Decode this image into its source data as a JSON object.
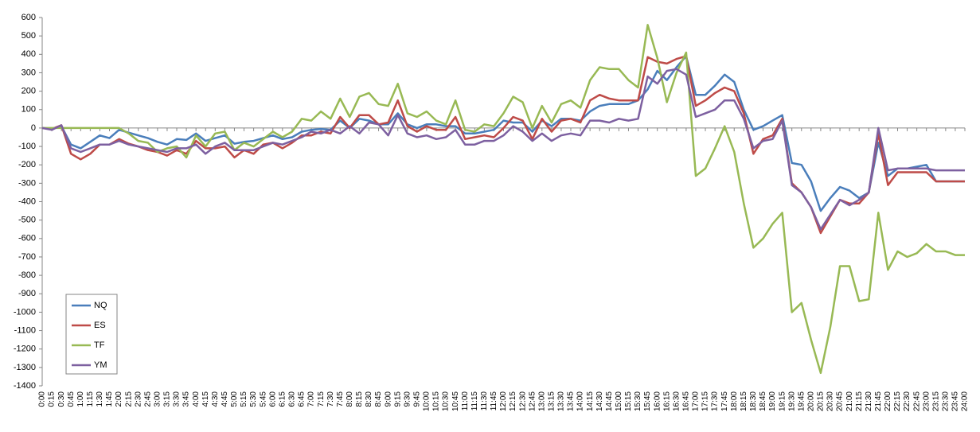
{
  "chart_data": {
    "type": "line",
    "categories": [
      "0:00",
      "0:15",
      "0:30",
      "0:45",
      "1:00",
      "1:15",
      "1:30",
      "1:45",
      "2:00",
      "2:15",
      "2:30",
      "2:45",
      "3:00",
      "3:15",
      "3:30",
      "3:45",
      "4:00",
      "4:15",
      "4:30",
      "4:45",
      "5:00",
      "5:15",
      "5:30",
      "5:45",
      "6:00",
      "6:15",
      "6:30",
      "6:45",
      "7:00",
      "7:15",
      "7:30",
      "7:45",
      "8:00",
      "8:15",
      "8:30",
      "8:45",
      "9:00",
      "9:15",
      "9:30",
      "9:45",
      "10:00",
      "10:15",
      "10:30",
      "10:45",
      "11:00",
      "11:15",
      "11:30",
      "11:45",
      "12:00",
      "12:15",
      "12:30",
      "12:45",
      "13:00",
      "13:15",
      "13:30",
      "13:45",
      "14:00",
      "14:15",
      "14:30",
      "14:45",
      "15:00",
      "15:15",
      "15:30",
      "15:45",
      "16:00",
      "16:15",
      "16:30",
      "16:45",
      "17:00",
      "17:15",
      "17:30",
      "17:45",
      "18:00",
      "18:15",
      "18:30",
      "18:45",
      "19:00",
      "19:15",
      "19:30",
      "19:45",
      "20:00",
      "20:15",
      "20:30",
      "20:45",
      "21:00",
      "21:15",
      "21:30",
      "21:45",
      "22:00",
      "22:15",
      "22:30",
      "22:45",
      "23:00",
      "23:15",
      "23:30",
      "23:45",
      "24:00"
    ],
    "series": [
      {
        "name": "NQ",
        "color": "#4a7ebb",
        "values": [
          0,
          -5,
          10,
          -90,
          -110,
          -75,
          -40,
          -55,
          -10,
          -25,
          -40,
          -55,
          -75,
          -90,
          -60,
          -65,
          -30,
          -70,
          -55,
          -40,
          -85,
          -75,
          -70,
          -55,
          -40,
          -60,
          -50,
          -20,
          -10,
          -5,
          -10,
          40,
          0,
          50,
          40,
          20,
          20,
          80,
          20,
          0,
          20,
          20,
          10,
          10,
          -30,
          -30,
          -20,
          -10,
          40,
          30,
          30,
          -20,
          40,
          10,
          50,
          50,
          40,
          90,
          120,
          130,
          130,
          130,
          150,
          210,
          310,
          260,
          330,
          390,
          180,
          180,
          230,
          290,
          250,
          100,
          -10,
          10,
          40,
          70,
          -190,
          -200,
          -290,
          -450,
          -380,
          -320,
          -340,
          -380,
          -350,
          -80,
          -260,
          -220,
          -220,
          -210,
          -200,
          -290,
          -290,
          -290,
          -290
        ]
      },
      {
        "name": "ES",
        "color": "#be4b48",
        "values": [
          0,
          -5,
          15,
          -140,
          -170,
          -140,
          -90,
          -90,
          -60,
          -85,
          -100,
          -120,
          -130,
          -150,
          -120,
          -140,
          -70,
          -110,
          -110,
          -100,
          -160,
          -120,
          -140,
          -90,
          -80,
          -110,
          -80,
          -40,
          -40,
          -20,
          -30,
          60,
          0,
          70,
          70,
          20,
          30,
          150,
          10,
          -20,
          10,
          -10,
          -10,
          60,
          -60,
          -50,
          -40,
          -50,
          0,
          60,
          40,
          -60,
          50,
          -20,
          40,
          50,
          30,
          150,
          180,
          160,
          150,
          150,
          150,
          385,
          360,
          350,
          375,
          390,
          120,
          150,
          190,
          220,
          200,
          80,
          -140,
          -60,
          -40,
          50,
          -300,
          -350,
          -430,
          -570,
          -480,
          -390,
          -410,
          -410,
          -350,
          -30,
          -310,
          -240,
          -240,
          -240,
          -240,
          -290,
          -290,
          -290,
          -290
        ]
      },
      {
        "name": "TF",
        "color": "#98b954",
        "values": [
          0,
          0,
          0,
          0,
          0,
          0,
          0,
          0,
          0,
          -30,
          -70,
          -80,
          -130,
          -110,
          -100,
          -160,
          -40,
          -100,
          -30,
          -20,
          -120,
          -80,
          -100,
          -60,
          -20,
          -50,
          -20,
          50,
          40,
          90,
          50,
          160,
          60,
          170,
          190,
          130,
          120,
          240,
          80,
          60,
          90,
          40,
          20,
          150,
          -10,
          -20,
          20,
          10,
          80,
          170,
          140,
          0,
          120,
          30,
          130,
          150,
          110,
          260,
          330,
          320,
          320,
          260,
          220,
          560,
          380,
          140,
          300,
          410,
          -260,
          -220,
          -110,
          10,
          -130,
          -410,
          -650,
          -600,
          -520,
          -460,
          -1000,
          -950,
          -1150,
          -1330,
          -1080,
          -750,
          -750,
          -940,
          -930,
          -460,
          -770,
          -670,
          -700,
          -680,
          -630,
          -670,
          -670,
          -690,
          -690
        ]
      },
      {
        "name": "YM",
        "color": "#7d60a0",
        "values": [
          0,
          -10,
          15,
          -110,
          -130,
          -110,
          -90,
          -90,
          -70,
          -90,
          -100,
          -110,
          -120,
          -130,
          -110,
          -110,
          -90,
          -140,
          -100,
          -80,
          -120,
          -120,
          -120,
          -100,
          -80,
          -90,
          -70,
          -50,
          -20,
          -30,
          -10,
          -30,
          10,
          -30,
          30,
          20,
          -40,
          70,
          -30,
          -50,
          -40,
          -60,
          -50,
          -10,
          -90,
          -90,
          -70,
          -70,
          -40,
          10,
          -20,
          -70,
          -30,
          -70,
          -40,
          -30,
          -40,
          40,
          40,
          30,
          50,
          40,
          50,
          280,
          240,
          310,
          320,
          290,
          60,
          80,
          100,
          150,
          150,
          50,
          -110,
          -70,
          -60,
          40,
          -310,
          -350,
          -430,
          -550,
          -470,
          -390,
          -420,
          -390,
          -350,
          0,
          -230,
          -220,
          -220,
          -220,
          -220,
          -230,
          -230,
          -230,
          -230
        ]
      }
    ],
    "ylim": [
      -1400,
      600
    ],
    "yticks": [
      -1400,
      -1300,
      -1200,
      -1100,
      -1000,
      -900,
      -800,
      -700,
      -600,
      -500,
      -400,
      -300,
      -200,
      -100,
      0,
      100,
      200,
      300,
      400,
      500,
      600
    ],
    "grid": false,
    "legend": "left"
  }
}
